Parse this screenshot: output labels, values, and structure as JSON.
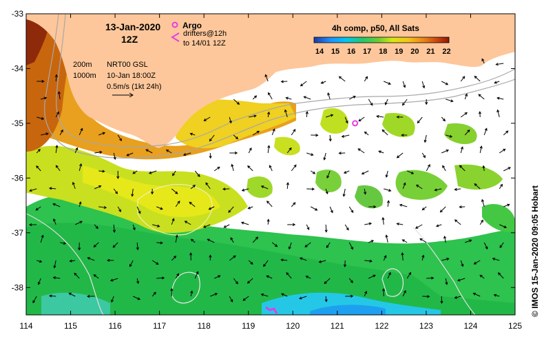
{
  "map": {
    "lon_range": [
      114,
      125
    ],
    "lat_range": [
      -38.5,
      -33
    ],
    "x_ticks": [
      "114",
      "115",
      "116",
      "117",
      "118",
      "119",
      "120",
      "121",
      "122",
      "123",
      "124",
      "125"
    ],
    "y_ticks": [
      "-33",
      "-34",
      "-35",
      "-36",
      "-37",
      "-38"
    ],
    "colors": {
      "land": "#fdc79b",
      "no_data": "#ffffff",
      "contour": "#a8a8a8",
      "arrow": "#000000",
      "argo": "#e83ae8",
      "drifter": "#e83ae8"
    }
  },
  "header": {
    "date": "13-Jan-2020",
    "time": "12Z",
    "argo_label": "Argo",
    "drifters_label": "drifters@12h",
    "drifters_label2": "to 14/01 12Z"
  },
  "contour_legend": {
    "depth1": "200m",
    "depth2": "1000m"
  },
  "altimetry": {
    "product": "NRT00 GSL",
    "datetime": "10-Jan 18:00Z",
    "scale_label": "0.5m/s (1kt 24h)"
  },
  "sst_scale": {
    "title": "4h comp, p50, All Sats",
    "ticks": [
      "14",
      "15",
      "16",
      "17",
      "18",
      "19",
      "20",
      "21",
      "22"
    ],
    "range": [
      14,
      22.5
    ]
  },
  "markers": {
    "argo": {
      "lon": 121.4,
      "lat": -35.0
    }
  },
  "credit": "© IMOS 15-Jan-2020 09:05 Hobart"
}
